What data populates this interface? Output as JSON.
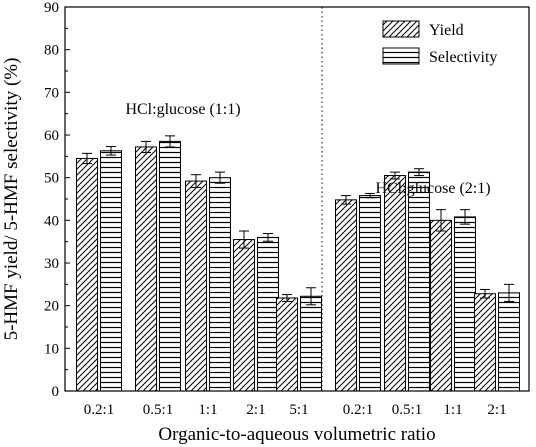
{
  "chart_data": {
    "type": "bar",
    "title": "",
    "xlabel": "Organic-to-aqueous volumetric ratio",
    "ylabel": "5-HMF yield/ 5-HMF selectivity (%)",
    "ylim": [
      0,
      90
    ],
    "yticks": [
      "0",
      "10",
      "20",
      "30",
      "40",
      "50",
      "60",
      "70",
      "80",
      "90"
    ],
    "grid": false,
    "legend_position": "top-right",
    "groups": [
      {
        "label": "HCl:glucose (1:1)",
        "categories": [
          "0.2:1",
          "0.5:1",
          "1:1",
          "2:1",
          "5:1"
        ],
        "series": [
          {
            "name": "Yield",
            "pattern": "diagonal-hatch",
            "values": [
              54.5,
              57.2,
              49.2,
              35.5,
              21.8
            ],
            "errors": [
              1.2,
              1.3,
              1.5,
              2.0,
              0.8
            ]
          },
          {
            "name": "Selectivity",
            "pattern": "horizontal-lines",
            "values": [
              56.3,
              58.5,
              50.0,
              36.0,
              22.2
            ],
            "errors": [
              1.0,
              1.3,
              1.3,
              0.9,
              2.0
            ]
          }
        ]
      },
      {
        "label": "HCl:glucose (2:1)",
        "categories": [
          "0.2:1",
          "0.5:1",
          "1:1",
          "2:1"
        ],
        "series": [
          {
            "name": "Yield",
            "pattern": "diagonal-hatch",
            "values": [
              44.8,
              50.5,
              40.0,
              22.8
            ],
            "errors": [
              1.0,
              0.8,
              2.5,
              1.0
            ]
          },
          {
            "name": "Selectivity",
            "pattern": "horizontal-lines",
            "values": [
              45.8,
              51.3,
              40.8,
              23.0
            ],
            "errors": [
              0.5,
              0.8,
              1.7,
              2.0
            ]
          }
        ]
      }
    ],
    "legend": [
      "Yield",
      "Selectivity"
    ],
    "bar_color": "#ffffff",
    "line_color": "#000000"
  }
}
